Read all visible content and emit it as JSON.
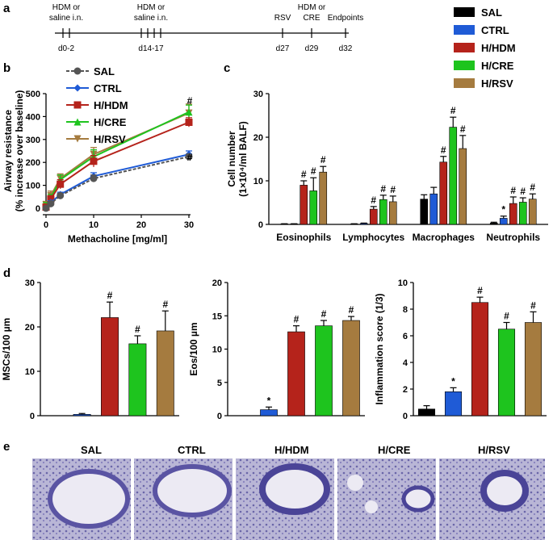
{
  "panel_labels": {
    "a": "a",
    "b": "b",
    "c": "c",
    "d": "d",
    "e": "e"
  },
  "timeline": {
    "events": [
      {
        "top": "HDM or",
        "top2": "saline i.n.",
        "bottom": "d0-2"
      },
      {
        "top": "HDM or",
        "top2": "saline i.n.",
        "bottom": "d14-17"
      },
      {
        "top": "RSV",
        "top2": "",
        "bottom": "d27"
      },
      {
        "top": "HDM or",
        "top2": "CRE",
        "bottom": "d29"
      },
      {
        "top": "Endpoints",
        "top2": "",
        "bottom": "d32"
      }
    ]
  },
  "legend": {
    "items": [
      {
        "label": "SAL",
        "color": "#000000"
      },
      {
        "label": "CTRL",
        "color": "#1f5bd6"
      },
      {
        "label": "H/HDM",
        "color": "#b5231b"
      },
      {
        "label": "H/CRE",
        "color": "#1ec41e"
      },
      {
        "label": "H/RSV",
        "color": "#a57b3f"
      }
    ]
  },
  "colors": {
    "SAL": "#000000",
    "CTRL": "#1f5bd6",
    "H/HDM": "#b5231b",
    "H/CRE": "#1ec41e",
    "H/RSV": "#a57b3f",
    "SAL_line": "#555555"
  },
  "chart_data": [
    {
      "id": "b",
      "type": "line",
      "xlabel": "Methacholine [mg/ml]",
      "ylabel": "Airway resistance",
      "ylabel2": "(% increase over baseline)",
      "xlim": [
        0,
        30
      ],
      "ylim": [
        0,
        500
      ],
      "xticks": [
        "0",
        "10",
        "20",
        "30"
      ],
      "yticks": [
        "0",
        "100",
        "200",
        "300",
        "400",
        "500"
      ],
      "x": [
        0,
        1,
        3,
        10,
        30
      ],
      "series": [
        {
          "name": "SAL",
          "values": [
            0,
            20,
            55,
            130,
            225
          ],
          "err": [
            5,
            8,
            10,
            15,
            10
          ],
          "marker": "circle"
        },
        {
          "name": "CTRL",
          "values": [
            0,
            25,
            60,
            140,
            235
          ],
          "err": [
            5,
            8,
            10,
            15,
            15
          ],
          "marker": "diamond"
        },
        {
          "name": "H/HDM",
          "values": [
            5,
            40,
            105,
            205,
            375
          ],
          "err": [
            10,
            15,
            20,
            25,
            20
          ],
          "marker": "square"
        },
        {
          "name": "H/CRE",
          "values": [
            10,
            45,
            125,
            225,
            420
          ],
          "err": [
            15,
            15,
            20,
            30,
            30
          ],
          "marker": "triangle"
        },
        {
          "name": "H/RSV",
          "values": [
            15,
            55,
            130,
            235,
            415
          ],
          "err": [
            15,
            20,
            20,
            30,
            40
          ],
          "marker": "triangle-down"
        }
      ],
      "annotations": [
        "#",
        "#"
      ]
    },
    {
      "id": "c",
      "type": "bar",
      "ylabel": "Cell number",
      "ylabel2": "(1×10⁴/ml BALF)",
      "ylim": [
        0,
        30
      ],
      "yticks": [
        "0",
        "10",
        "20",
        "30"
      ],
      "categories": [
        "Eosinophils",
        "Lymphocytes",
        "Macrophages",
        "Neutrophils"
      ],
      "series": [
        {
          "name": "SAL",
          "values": [
            0.1,
            0.1,
            5.8,
            0.3
          ],
          "err": [
            0.05,
            0.05,
            1.0,
            0.2
          ]
        },
        {
          "name": "CTRL",
          "values": [
            0.1,
            0.2,
            7.0,
            1.4
          ],
          "err": [
            0.05,
            0.1,
            1.5,
            0.5
          ]
        },
        {
          "name": "H/HDM",
          "values": [
            9.0,
            3.5,
            14.3,
            4.8
          ],
          "err": [
            1.0,
            0.6,
            1.3,
            1.5
          ]
        },
        {
          "name": "H/CRE",
          "values": [
            7.7,
            5.7,
            22.3,
            5.1
          ],
          "err": [
            3.0,
            1.0,
            2.3,
            1.0
          ]
        },
        {
          "name": "H/RSV",
          "values": [
            12.0,
            5.2,
            17.4,
            5.8
          ],
          "err": [
            1.3,
            1.3,
            3.0,
            1.2
          ]
        }
      ],
      "marks": [
        [
          "",
          "",
          "#",
          "#",
          "#"
        ],
        [
          "",
          "",
          "#",
          "#",
          "#"
        ],
        [
          "",
          "",
          "#",
          "#",
          "#"
        ],
        [
          "",
          "*",
          "#",
          "#",
          "#"
        ]
      ]
    },
    {
      "id": "d1",
      "type": "bar",
      "ylabel": "MSCs/100 µm",
      "ylim": [
        0,
        30
      ],
      "yticks": [
        "0",
        "10",
        "20",
        "30"
      ],
      "categories": [
        "SAL",
        "CTRL",
        "H/HDM",
        "H/CRE",
        "H/RSV"
      ],
      "values": [
        0,
        0.3,
        22.1,
        16.2,
        19.1
      ],
      "err": [
        0,
        0.2,
        3.5,
        1.8,
        4.5
      ],
      "marks": [
        "",
        "",
        "#",
        "#",
        "#"
      ]
    },
    {
      "id": "d2",
      "type": "bar",
      "ylabel": "Eos/100 µm",
      "ylim": [
        0,
        20
      ],
      "yticks": [
        "0",
        "5",
        "10",
        "15",
        "20"
      ],
      "categories": [
        "SAL",
        "CTRL",
        "H/HDM",
        "H/CRE",
        "H/RSV"
      ],
      "values": [
        0,
        0.9,
        12.6,
        13.5,
        14.3
      ],
      "err": [
        0,
        0.4,
        0.9,
        0.8,
        0.6
      ],
      "marks": [
        "",
        "*",
        "#",
        "#",
        "#"
      ]
    },
    {
      "id": "d3",
      "type": "bar",
      "ylabel": "Inflammation score (1/3)",
      "ylim": [
        0,
        10
      ],
      "yticks": [
        "0",
        "2",
        "4",
        "6",
        "8",
        "10"
      ],
      "categories": [
        "SAL",
        "CTRL",
        "H/HDM",
        "H/CRE",
        "H/RSV"
      ],
      "values": [
        0.5,
        1.8,
        8.5,
        6.5,
        7.0
      ],
      "err": [
        0.25,
        0.3,
        0.4,
        0.5,
        0.8
      ],
      "marks": [
        "",
        "*",
        "#",
        "#",
        "#"
      ]
    }
  ],
  "histology": {
    "labels": [
      "SAL",
      "CTRL",
      "H/HDM",
      "H/CRE",
      "H/RSV"
    ]
  }
}
